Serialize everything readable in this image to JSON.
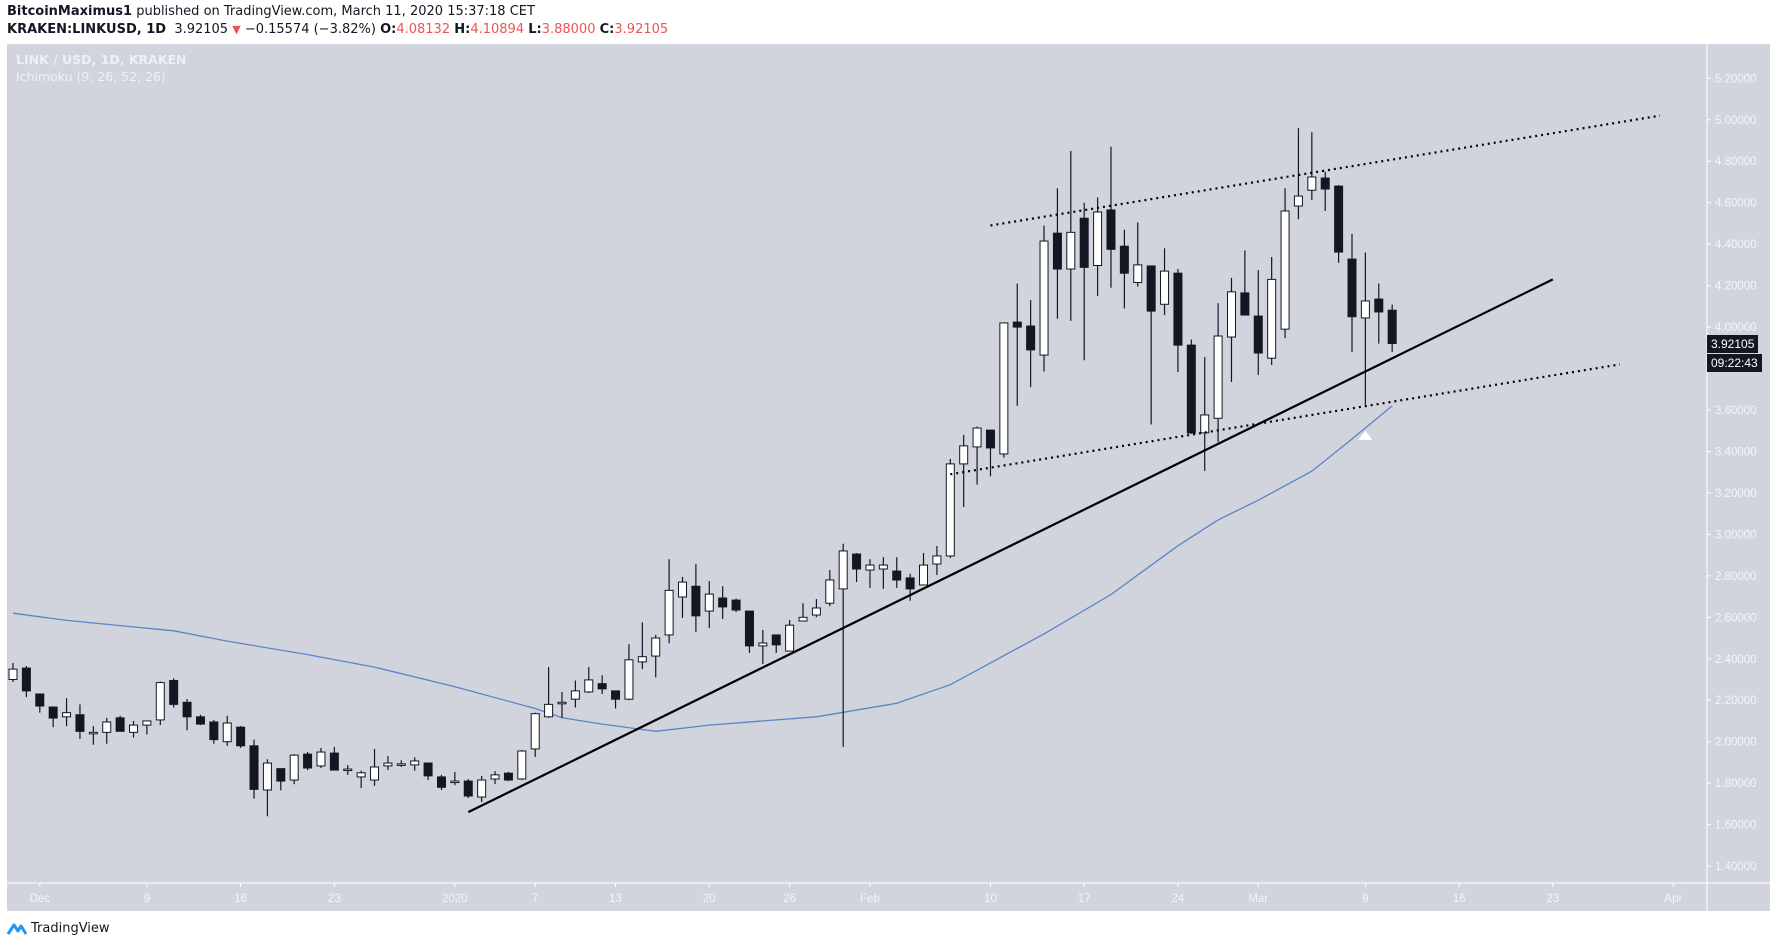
{
  "header": {
    "publisher": "BitcoinMaximus1",
    "published_text": "published on TradingView.com, March 11, 2020 15:37:18 CET",
    "symbol": "KRAKEN:LINKUSD, 1D",
    "last": "3.92105",
    "change_arrow": "▼",
    "change": "−0.15574 (−3.82%)",
    "o_label": "O:",
    "o_value": "4.08132",
    "h_label": "H:",
    "h_value": "4.10894",
    "l_label": "L:",
    "l_value": "3.88000",
    "c_label": "C:",
    "c_value": "3.92105"
  },
  "legend": {
    "title": "LINK / USD, 1D, KRAKEN",
    "indicator": "Ichimoku (9, 26, 52, 26)"
  },
  "price_tag": {
    "price": "3.92105",
    "countdown": "09:22:43"
  },
  "footer": {
    "brand": "TradingView"
  },
  "colors": {
    "background": "#d1d4dc",
    "up_body": "#ffffff",
    "down_body": "#131722",
    "ma_line": "#5b84c4",
    "trendline": "#000000",
    "axis_text": "#f4f5f7",
    "change_red": "#ef5350"
  },
  "chart_data": {
    "type": "candlestick",
    "title": "LINK / USD, 1D, KRAKEN",
    "xlabel": "",
    "ylabel": "",
    "ylim": [
      1.3,
      5.3
    ],
    "y_ticks": [
      "5.20000",
      "5.00000",
      "4.80000",
      "4.60000",
      "4.40000",
      "4.20000",
      "4.00000",
      "3.80000",
      "3.60000",
      "3.40000",
      "3.20000",
      "3.00000",
      "2.80000",
      "2.60000",
      "2.40000",
      "2.20000",
      "2.00000",
      "1.80000",
      "1.60000",
      "1.40000"
    ],
    "x_ticks": [
      {
        "label": "Dec",
        "day": 2
      },
      {
        "label": "9",
        "day": 10
      },
      {
        "label": "16",
        "day": 17
      },
      {
        "label": "23",
        "day": 24
      },
      {
        "label": "2020",
        "day": 33
      },
      {
        "label": "7",
        "day": 39
      },
      {
        "label": "13",
        "day": 45
      },
      {
        "label": "20",
        "day": 52
      },
      {
        "label": "26",
        "day": 58
      },
      {
        "label": "Feb",
        "day": 64
      },
      {
        "label": "10",
        "day": 73
      },
      {
        "label": "17",
        "day": 80
      },
      {
        "label": "24",
        "day": 87
      },
      {
        "label": "Mar",
        "day": 93
      },
      {
        "label": "9",
        "day": 101
      },
      {
        "label": "16",
        "day": 108
      },
      {
        "label": "23",
        "day": 115
      },
      {
        "label": "Apr",
        "day": 124
      }
    ],
    "start_date": "2019-11-29",
    "columns": [
      "date",
      "open",
      "high",
      "low",
      "close"
    ],
    "candles": [
      [
        "Nov 29",
        2.3,
        2.38,
        2.288,
        2.35
      ],
      [
        "Nov 30",
        2.355,
        2.365,
        2.215,
        2.245
      ],
      [
        "Dec 1",
        2.23,
        2.23,
        2.14,
        2.172
      ],
      [
        "Dec 2",
        2.167,
        2.17,
        2.07,
        2.114
      ],
      [
        "Dec 3",
        2.12,
        2.21,
        2.075,
        2.14
      ],
      [
        "Dec 4",
        2.13,
        2.18,
        2.013,
        2.05
      ],
      [
        "Dec 5",
        2.045,
        2.075,
        1.985,
        2.045
      ],
      [
        "Dec 6",
        2.045,
        2.115,
        1.99,
        2.095
      ],
      [
        "Dec 7",
        2.115,
        2.125,
        2.05,
        2.05
      ],
      [
        "Dec 8",
        2.045,
        2.1,
        2.02,
        2.08
      ],
      [
        "Dec 9",
        2.08,
        2.1,
        2.035,
        2.1
      ],
      [
        "Dec 10",
        2.105,
        2.29,
        2.08,
        2.285
      ],
      [
        "Dec 11",
        2.295,
        2.305,
        2.165,
        2.18
      ],
      [
        "Dec 12",
        2.19,
        2.205,
        2.055,
        2.12
      ],
      [
        "Dec 13",
        2.12,
        2.13,
        2.08,
        2.085
      ],
      [
        "Dec 14",
        2.095,
        2.105,
        1.99,
        2.01
      ],
      [
        "Dec 15",
        2.0,
        2.125,
        1.98,
        2.09
      ],
      [
        "Dec 16",
        2.07,
        2.075,
        1.97,
        1.98
      ],
      [
        "Dec 17",
        1.98,
        2.01,
        1.725,
        1.77
      ],
      [
        "Dec 18",
        1.767,
        1.915,
        1.64,
        1.897
      ],
      [
        "Dec 19",
        1.87,
        1.87,
        1.765,
        1.81
      ],
      [
        "Dec 20",
        1.815,
        1.94,
        1.795,
        1.935
      ],
      [
        "Dec 21",
        1.94,
        1.95,
        1.863,
        1.873
      ],
      [
        "Dec 22",
        1.883,
        1.97,
        1.873,
        1.95
      ],
      [
        "Dec 23",
        1.945,
        1.975,
        1.863,
        1.863
      ],
      [
        "Dec 24",
        1.868,
        1.887,
        1.84,
        1.868
      ],
      [
        "Dec 25",
        1.83,
        1.86,
        1.776,
        1.85
      ],
      [
        "Dec 26",
        1.815,
        1.965,
        1.787,
        1.878
      ],
      [
        "Dec 27",
        1.883,
        1.93,
        1.863,
        1.897
      ],
      [
        "Dec 28",
        1.893,
        1.91,
        1.878,
        1.893
      ],
      [
        "Dec 29",
        1.888,
        1.925,
        1.86,
        1.907
      ],
      [
        "Dec 30",
        1.897,
        1.9,
        1.815,
        1.835
      ],
      [
        "Dec 31",
        1.83,
        1.84,
        1.767,
        1.78
      ],
      [
        "Jan 1",
        1.81,
        1.854,
        1.79,
        1.81
      ],
      [
        "Jan 2",
        1.81,
        1.82,
        1.728,
        1.738
      ],
      [
        "Jan 3",
        1.733,
        1.835,
        1.709,
        1.815
      ],
      [
        "Jan 4",
        1.82,
        1.858,
        1.796,
        1.84
      ],
      [
        "Jan 5",
        1.848,
        1.854,
        1.81,
        1.815
      ],
      [
        "Jan 6",
        1.82,
        1.96,
        1.815,
        1.955
      ],
      [
        "Jan 7",
        1.965,
        2.14,
        1.926,
        2.135
      ],
      [
        "Jan 8",
        2.12,
        2.36,
        2.115,
        2.18
      ],
      [
        "Jan 9",
        2.19,
        2.24,
        2.115,
        2.19
      ],
      [
        "Jan 10",
        2.205,
        2.295,
        2.165,
        2.245
      ],
      [
        "Jan 11",
        2.24,
        2.36,
        2.235,
        2.298
      ],
      [
        "Jan 12",
        2.28,
        2.32,
        2.23,
        2.255
      ],
      [
        "Jan 13",
        2.245,
        2.245,
        2.16,
        2.205
      ],
      [
        "Jan 14",
        2.205,
        2.47,
        2.2,
        2.395
      ],
      [
        "Jan 15",
        2.385,
        2.575,
        2.35,
        2.41
      ],
      [
        "Jan 16",
        2.413,
        2.515,
        2.31,
        2.5
      ],
      [
        "Jan 17",
        2.515,
        2.88,
        2.475,
        2.73
      ],
      [
        "Jan 18",
        2.698,
        2.795,
        2.597,
        2.77
      ],
      [
        "Jan 19",
        2.75,
        2.857,
        2.53,
        2.607
      ],
      [
        "Jan 20",
        2.63,
        2.775,
        2.548,
        2.712
      ],
      [
        "Jan 21",
        2.693,
        2.75,
        2.592,
        2.65
      ],
      [
        "Jan 22",
        2.683,
        2.69,
        2.625,
        2.635
      ],
      [
        "Jan 23",
        2.63,
        2.63,
        2.428,
        2.462
      ],
      [
        "Jan 24",
        2.462,
        2.539,
        2.375,
        2.476
      ],
      [
        "Jan 25",
        2.515,
        2.515,
        2.428,
        2.467
      ],
      [
        "Jan 26",
        2.437,
        2.587,
        2.437,
        2.562
      ],
      [
        "Jan 27",
        2.582,
        2.668,
        2.582,
        2.6
      ],
      [
        "Jan 28",
        2.611,
        2.688,
        2.6,
        2.645
      ],
      [
        "Jan 29",
        2.668,
        2.828,
        2.654,
        2.78
      ],
      [
        "Jan 30",
        2.737,
        2.955,
        1.975,
        2.92
      ],
      [
        "Jan 31",
        2.905,
        2.91,
        2.77,
        2.833
      ],
      [
        "Feb 1",
        2.828,
        2.88,
        2.742,
        2.852
      ],
      [
        "Feb 2",
        2.833,
        2.89,
        2.737,
        2.852
      ],
      [
        "Feb 3",
        2.823,
        2.89,
        2.742,
        2.78
      ],
      [
        "Feb 4",
        2.79,
        2.81,
        2.68,
        2.737
      ],
      [
        "Feb 5",
        2.756,
        2.91,
        2.756,
        2.852
      ],
      [
        "Feb 6",
        2.857,
        2.944,
        2.804,
        2.896
      ],
      [
        "Feb 7",
        2.896,
        3.364,
        2.886,
        3.34
      ],
      [
        "Feb 8",
        3.34,
        3.48,
        3.132,
        3.427
      ],
      [
        "Feb 9",
        3.422,
        3.52,
        3.24,
        3.513
      ],
      [
        "Feb 10",
        3.503,
        3.503,
        3.28,
        3.417
      ],
      [
        "Feb 11",
        3.388,
        4.02,
        3.37,
        4.02
      ],
      [
        "Feb 12",
        4.024,
        4.21,
        3.62,
        4.0
      ],
      [
        "Feb 13",
        4.005,
        4.13,
        3.71,
        3.89
      ],
      [
        "Feb 14",
        3.865,
        4.49,
        3.785,
        4.415
      ],
      [
        "Feb 15",
        4.453,
        4.67,
        4.04,
        4.28
      ],
      [
        "Feb 16",
        4.28,
        4.85,
        4.03,
        4.457
      ],
      [
        "Feb 17",
        4.525,
        4.6,
        3.84,
        4.288
      ],
      [
        "Feb 18",
        4.297,
        4.625,
        4.15,
        4.555
      ],
      [
        "Feb 19",
        4.565,
        4.87,
        4.19,
        4.375
      ],
      [
        "Feb 20",
        4.39,
        4.47,
        4.09,
        4.26
      ],
      [
        "Feb 21",
        4.215,
        4.505,
        4.195,
        4.3
      ],
      [
        "Feb 22",
        4.295,
        4.295,
        3.53,
        4.077
      ],
      [
        "Feb 23",
        4.11,
        4.38,
        4.058,
        4.27
      ],
      [
        "Feb 24",
        4.26,
        4.28,
        3.783,
        3.913
      ],
      [
        "Feb 25",
        3.913,
        3.94,
        3.485,
        3.489
      ],
      [
        "Feb 26",
        3.49,
        3.855,
        3.306,
        3.576
      ],
      [
        "Feb 27",
        3.56,
        4.115,
        3.446,
        3.957
      ],
      [
        "Feb 28",
        3.952,
        4.237,
        3.735,
        4.17
      ],
      [
        "Feb 29",
        4.165,
        4.37,
        4.058,
        4.058
      ],
      [
        "Mar 1",
        4.053,
        4.275,
        3.769,
        3.875
      ],
      [
        "Mar 2",
        3.85,
        4.338,
        3.817,
        4.23
      ],
      [
        "Mar 3",
        3.99,
        4.67,
        3.947,
        4.56
      ],
      [
        "Mar 4",
        4.584,
        4.96,
        4.52,
        4.632
      ],
      [
        "Mar 5",
        4.66,
        4.94,
        4.613,
        4.724
      ],
      [
        "Mar 6",
        4.719,
        4.75,
        4.56,
        4.666
      ],
      [
        "Mar 7",
        4.68,
        4.685,
        4.31,
        4.362
      ],
      [
        "Mar 8",
        4.328,
        4.45,
        3.88,
        4.05
      ],
      [
        "Mar 9",
        4.044,
        4.36,
        3.625,
        4.126
      ],
      [
        "Mar 10",
        4.135,
        4.21,
        3.92,
        4.073
      ],
      [
        "Mar 11",
        4.08132,
        4.10894,
        3.88,
        3.92105
      ]
    ],
    "ma_line": {
      "name": "moving average (blue)",
      "points_day_price": [
        [
          0,
          2.62
        ],
        [
          4,
          2.585
        ],
        [
          12,
          2.535
        ],
        [
          16,
          2.485
        ],
        [
          22,
          2.42
        ],
        [
          27,
          2.36
        ],
        [
          33,
          2.265
        ],
        [
          39,
          2.16
        ],
        [
          41,
          2.115
        ],
        [
          44,
          2.085
        ],
        [
          48,
          2.05
        ],
        [
          52,
          2.08
        ],
        [
          60,
          2.12
        ],
        [
          66,
          2.185
        ],
        [
          70,
          2.275
        ],
        [
          73,
          2.38
        ],
        [
          77,
          2.52
        ],
        [
          82,
          2.71
        ],
        [
          87,
          2.945
        ],
        [
          90,
          3.07
        ],
        [
          93,
          3.165
        ],
        [
          97,
          3.305
        ],
        [
          100,
          3.46
        ],
        [
          103,
          3.62
        ]
      ]
    },
    "trendlines": [
      {
        "name": "rising support",
        "style": "solid",
        "from": [
          34,
          1.66
        ],
        "to": [
          115,
          4.23
        ]
      },
      {
        "name": "channel top",
        "style": "dotted",
        "from": [
          73,
          4.49
        ],
        "to": [
          123,
          5.02
        ]
      },
      {
        "name": "channel bottom",
        "style": "dotted",
        "from": [
          70,
          3.29
        ],
        "to": [
          120,
          3.82
        ]
      }
    ],
    "markers": [
      {
        "type": "white-up-triangle",
        "day": 101,
        "price": 3.48
      }
    ]
  }
}
